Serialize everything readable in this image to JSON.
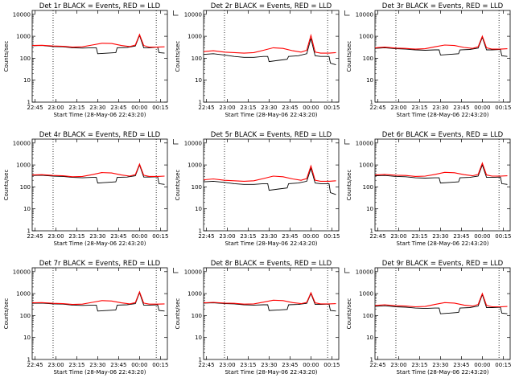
{
  "chart_data": [
    {
      "type": "line",
      "title": "Det 1r BLACK = Events, RED = LLD",
      "xlabel": "Start Time (28-May-06 22:43:20)",
      "ylabel": "Counts/sec",
      "yscale": "log",
      "ylim": [
        1,
        15000
      ],
      "x_ticks": [
        "22:45",
        "23:00",
        "23:15",
        "23:30",
        "23:45",
        "00:00",
        "00:15"
      ],
      "y_ticks": [
        "1",
        "10",
        "100",
        "1000",
        "10000"
      ],
      "series": [
        {
          "color": "#000000",
          "x": [
            "22:43",
            "22:50",
            "22:58",
            "23:05",
            "23:12",
            "23:19",
            "23:26",
            "23:29",
            "23:30",
            "23:37",
            "23:43",
            "23:44",
            "23:51",
            "23:57",
            "00:00",
            "00:03",
            "00:07",
            "00:13",
            "00:14",
            "00:18"
          ],
          "values": [
            370,
            380,
            340,
            330,
            300,
            290,
            300,
            300,
            160,
            170,
            180,
            300,
            310,
            360,
            1100,
            300,
            300,
            320,
            180,
            170
          ]
        },
        {
          "color": "#ff0000",
          "x": [
            "22:43",
            "22:50",
            "22:58",
            "23:05",
            "23:12",
            "23:19",
            "23:26",
            "23:33",
            "23:40",
            "23:47",
            "23:53",
            "23:57",
            "24:00",
            "00:03",
            "00:07",
            "00:13",
            "00:18"
          ],
          "values": [
            380,
            390,
            360,
            350,
            320,
            330,
            400,
            480,
            470,
            380,
            340,
            400,
            1200,
            380,
            320,
            320,
            330
          ]
        }
      ]
    },
    {
      "type": "line",
      "title": "Det 2r BLACK = Events, RED = LLD",
      "xlabel": "Start Time (28-May-06 22:43:20)",
      "ylabel": "Counts/sec",
      "yscale": "log",
      "ylim": [
        1,
        15000
      ],
      "x_ticks": [
        "22:45",
        "23:00",
        "23:15",
        "23:30",
        "23:45",
        "00:00",
        "00:15"
      ],
      "y_ticks": [
        "1",
        "10",
        "100",
        "1000",
        "10000"
      ],
      "series": [
        {
          "color": "#000000",
          "x": [
            "22:43",
            "22:50",
            "22:58",
            "23:05",
            "23:12",
            "23:19",
            "23:26",
            "23:29",
            "23:30",
            "23:37",
            "23:43",
            "23:44",
            "23:51",
            "23:57",
            "00:00",
            "00:03",
            "00:07",
            "00:13",
            "00:14",
            "00:18"
          ],
          "values": [
            150,
            160,
            140,
            120,
            110,
            110,
            120,
            120,
            70,
            80,
            90,
            120,
            130,
            160,
            800,
            130,
            120,
            120,
            60,
            50
          ]
        },
        {
          "color": "#ff0000",
          "x": [
            "22:43",
            "22:50",
            "22:58",
            "23:05",
            "23:12",
            "23:19",
            "23:26",
            "23:33",
            "23:40",
            "23:47",
            "23:53",
            "23:57",
            "24:00",
            "00:03",
            "00:07",
            "00:13",
            "00:18"
          ],
          "values": [
            200,
            220,
            190,
            180,
            170,
            180,
            230,
            300,
            280,
            220,
            190,
            230,
            1100,
            190,
            170,
            170,
            180
          ]
        }
      ]
    },
    {
      "type": "line",
      "title": "Det 3r BLACK = Events, RED = LLD",
      "xlabel": "Start Time (28-May-06 22:43:20)",
      "ylabel": "Counts/sec",
      "yscale": "log",
      "ylim": [
        1,
        15000
      ],
      "x_ticks": [
        "22:45",
        "23:00",
        "23:15",
        "23:30",
        "23:45",
        "00:00",
        "00:15"
      ],
      "y_ticks": [
        "1",
        "10",
        "100",
        "1000",
        "10000"
      ],
      "series": [
        {
          "color": "#000000",
          "x": [
            "22:43",
            "22:50",
            "22:58",
            "23:05",
            "23:12",
            "23:19",
            "23:26",
            "23:29",
            "23:30",
            "23:37",
            "23:43",
            "23:44",
            "23:51",
            "23:57",
            "00:00",
            "00:03",
            "00:07",
            "00:13",
            "00:14",
            "00:18"
          ],
          "values": [
            280,
            300,
            270,
            260,
            240,
            230,
            240,
            240,
            140,
            150,
            160,
            240,
            250,
            290,
            900,
            240,
            240,
            250,
            130,
            120
          ]
        },
        {
          "color": "#ff0000",
          "x": [
            "22:43",
            "22:50",
            "22:58",
            "23:05",
            "23:12",
            "23:19",
            "23:26",
            "23:33",
            "23:40",
            "23:47",
            "23:53",
            "23:57",
            "24:00",
            "00:03",
            "00:07",
            "00:13",
            "00:18"
          ],
          "values": [
            300,
            320,
            290,
            280,
            260,
            270,
            330,
            400,
            380,
            310,
            280,
            330,
            1000,
            300,
            260,
            260,
            270
          ]
        }
      ]
    },
    {
      "type": "line",
      "title": "Det 4r BLACK = Events, RED = LLD",
      "xlabel": "Start Time (28-May-06 22:43:20)",
      "ylabel": "Counts/sec",
      "yscale": "log",
      "ylim": [
        1,
        15000
      ],
      "x_ticks": [
        "22:45",
        "23:00",
        "23:15",
        "23:30",
        "23:45",
        "00:00",
        "00:15"
      ],
      "y_ticks": [
        "1",
        "10",
        "100",
        "1000",
        "10000"
      ],
      "series": [
        {
          "color": "#000000",
          "x": [
            "22:43",
            "22:50",
            "22:58",
            "23:05",
            "23:12",
            "23:19",
            "23:26",
            "23:29",
            "23:30",
            "23:37",
            "23:43",
            "23:44",
            "23:51",
            "23:57",
            "00:00",
            "00:03",
            "00:07",
            "00:13",
            "00:14",
            "00:18"
          ],
          "values": [
            330,
            340,
            310,
            300,
            270,
            260,
            270,
            270,
            150,
            160,
            170,
            270,
            280,
            320,
            1000,
            280,
            280,
            290,
            140,
            130
          ]
        },
        {
          "color": "#ff0000",
          "x": [
            "22:43",
            "22:50",
            "22:58",
            "23:05",
            "23:12",
            "23:19",
            "23:26",
            "23:33",
            "23:40",
            "23:47",
            "23:53",
            "23:57",
            "24:00",
            "00:03",
            "00:07",
            "00:13",
            "00:18"
          ],
          "values": [
            350,
            360,
            330,
            320,
            290,
            300,
            360,
            450,
            430,
            350,
            310,
            360,
            1100,
            340,
            300,
            300,
            310
          ]
        }
      ]
    },
    {
      "type": "line",
      "title": "Det 5r BLACK = Events, RED = LLD",
      "xlabel": "Start Time (28-May-06 22:43:20)",
      "ylabel": "Counts/sec",
      "yscale": "log",
      "ylim": [
        1,
        15000
      ],
      "x_ticks": [
        "22:45",
        "23:00",
        "23:15",
        "23:30",
        "23:45",
        "00:00",
        "00:15"
      ],
      "y_ticks": [
        "1",
        "10",
        "100",
        "1000",
        "10000"
      ],
      "series": [
        {
          "color": "#000000",
          "x": [
            "22:43",
            "22:50",
            "22:58",
            "23:05",
            "23:12",
            "23:19",
            "23:26",
            "23:29",
            "23:30",
            "23:37",
            "23:43",
            "23:44",
            "23:51",
            "23:57",
            "00:00",
            "00:03",
            "00:07",
            "00:13",
            "00:14",
            "00:18"
          ],
          "values": [
            170,
            180,
            160,
            140,
            130,
            130,
            140,
            140,
            70,
            80,
            90,
            140,
            150,
            180,
            700,
            150,
            140,
            140,
            55,
            45
          ]
        },
        {
          "color": "#ff0000",
          "x": [
            "22:43",
            "22:50",
            "22:58",
            "23:05",
            "23:12",
            "23:19",
            "23:26",
            "23:33",
            "23:40",
            "23:47",
            "23:53",
            "23:57",
            "24:00",
            "00:03",
            "00:07",
            "00:13",
            "00:18"
          ],
          "values": [
            210,
            230,
            200,
            190,
            180,
            190,
            240,
            310,
            290,
            230,
            200,
            240,
            900,
            200,
            180,
            180,
            190
          ]
        }
      ]
    },
    {
      "type": "line",
      "title": "Det 6r BLACK = Events, RED = LLD",
      "xlabel": "Start Time (28-May-06 22:43:20)",
      "ylabel": "Counts/sec",
      "yscale": "log",
      "ylim": [
        1,
        15000
      ],
      "x_ticks": [
        "22:45",
        "23:00",
        "23:15",
        "23:30",
        "23:45",
        "00:00",
        "00:15"
      ],
      "y_ticks": [
        "1",
        "10",
        "100",
        "1000",
        "10000"
      ],
      "series": [
        {
          "color": "#000000",
          "x": [
            "22:43",
            "22:50",
            "22:58",
            "23:05",
            "23:12",
            "23:19",
            "23:26",
            "23:29",
            "23:30",
            "23:37",
            "23:43",
            "23:44",
            "23:51",
            "23:57",
            "00:00",
            "00:03",
            "00:07",
            "00:13",
            "00:14",
            "00:18"
          ],
          "values": [
            320,
            330,
            300,
            290,
            260,
            250,
            260,
            260,
            150,
            160,
            170,
            260,
            270,
            310,
            1000,
            270,
            270,
            280,
            140,
            130
          ]
        },
        {
          "color": "#ff0000",
          "x": [
            "22:43",
            "22:50",
            "22:58",
            "23:05",
            "23:12",
            "23:19",
            "23:26",
            "23:33",
            "23:40",
            "23:47",
            "23:53",
            "23:57",
            "24:00",
            "00:03",
            "00:07",
            "00:13",
            "00:18"
          ],
          "values": [
            350,
            370,
            340,
            330,
            300,
            310,
            370,
            460,
            440,
            360,
            320,
            370,
            1200,
            350,
            310,
            310,
            320
          ]
        }
      ]
    },
    {
      "type": "line",
      "title": "Det 7r BLACK = Events, RED = LLD",
      "xlabel": "Start Time (28-May-06 22:43:20)",
      "ylabel": "Counts/sec",
      "yscale": "log",
      "ylim": [
        1,
        15000
      ],
      "x_ticks": [
        "22:45",
        "23:00",
        "23:15",
        "23:30",
        "23:45",
        "00:00",
        "00:15"
      ],
      "y_ticks": [
        "1",
        "10",
        "100",
        "1000",
        "10000"
      ],
      "series": [
        {
          "color": "#000000",
          "x": [
            "22:43",
            "22:50",
            "22:58",
            "23:05",
            "23:12",
            "23:19",
            "23:26",
            "23:29",
            "23:30",
            "23:37",
            "23:43",
            "23:44",
            "23:51",
            "23:57",
            "00:00",
            "00:03",
            "00:07",
            "00:13",
            "00:14",
            "00:18"
          ],
          "values": [
            360,
            370,
            340,
            330,
            300,
            290,
            300,
            300,
            160,
            170,
            180,
            300,
            310,
            350,
            1100,
            300,
            300,
            310,
            170,
            160
          ]
        },
        {
          "color": "#ff0000",
          "x": [
            "22:43",
            "22:50",
            "22:58",
            "23:05",
            "23:12",
            "23:19",
            "23:26",
            "23:33",
            "23:40",
            "23:47",
            "23:53",
            "23:57",
            "24:00",
            "00:03",
            "00:07",
            "00:13",
            "00:18"
          ],
          "values": [
            380,
            390,
            360,
            350,
            320,
            330,
            400,
            480,
            460,
            380,
            340,
            390,
            1200,
            370,
            330,
            330,
            340
          ]
        }
      ]
    },
    {
      "type": "line",
      "title": "Det 8r BLACK = Events, RED = LLD",
      "xlabel": "Start Time (28-May-06 22:43:20)",
      "ylabel": "Counts/sec",
      "yscale": "log",
      "ylim": [
        1,
        15000
      ],
      "x_ticks": [
        "22:45",
        "23:00",
        "23:15",
        "23:30",
        "23:45",
        "00:00",
        "00:15"
      ],
      "y_ticks": [
        "1",
        "10",
        "100",
        "1000",
        "10000"
      ],
      "series": [
        {
          "color": "#000000",
          "x": [
            "22:43",
            "22:50",
            "22:58",
            "23:05",
            "23:12",
            "23:19",
            "23:26",
            "23:29",
            "23:30",
            "23:37",
            "23:43",
            "23:44",
            "23:51",
            "23:57",
            "00:00",
            "00:03",
            "00:07",
            "00:13",
            "00:14",
            "00:18"
          ],
          "values": [
            370,
            380,
            350,
            340,
            310,
            300,
            310,
            310,
            170,
            180,
            190,
            310,
            320,
            360,
            1000,
            320,
            320,
            330,
            170,
            160
          ]
        },
        {
          "color": "#ff0000",
          "x": [
            "22:43",
            "22:50",
            "22:58",
            "23:05",
            "23:12",
            "23:19",
            "23:26",
            "23:33",
            "23:40",
            "23:47",
            "23:53",
            "23:57",
            "24:00",
            "00:03",
            "00:07",
            "00:13",
            "00:18"
          ],
          "values": [
            380,
            400,
            370,
            360,
            330,
            340,
            410,
            500,
            480,
            390,
            350,
            400,
            1100,
            380,
            340,
            340,
            350
          ]
        }
      ]
    },
    {
      "type": "line",
      "title": "Det 9r BLACK = Events, RED = LLD",
      "xlabel": "Start Time (28-May-06 22:43:20)",
      "ylabel": "Counts/sec",
      "yscale": "log",
      "ylim": [
        1,
        15000
      ],
      "x_ticks": [
        "22:45",
        "23:00",
        "23:15",
        "23:30",
        "23:45",
        "00:00",
        "00:15"
      ],
      "y_ticks": [
        "1",
        "10",
        "100",
        "1000",
        "10000"
      ],
      "series": [
        {
          "color": "#000000",
          "x": [
            "22:43",
            "22:50",
            "22:58",
            "23:05",
            "23:12",
            "23:19",
            "23:26",
            "23:29",
            "23:30",
            "23:37",
            "23:43",
            "23:44",
            "23:51",
            "23:57",
            "00:00",
            "00:03",
            "00:07",
            "00:13",
            "00:14",
            "00:18"
          ],
          "values": [
            260,
            280,
            250,
            240,
            220,
            210,
            220,
            220,
            120,
            130,
            140,
            220,
            230,
            270,
            900,
            230,
            230,
            240,
            130,
            120
          ]
        },
        {
          "color": "#ff0000",
          "x": [
            "22:43",
            "22:50",
            "22:58",
            "23:05",
            "23:12",
            "23:19",
            "23:26",
            "23:33",
            "23:40",
            "23:47",
            "23:53",
            "23:57",
            "24:00",
            "00:03",
            "00:07",
            "00:13",
            "00:18"
          ],
          "values": [
            290,
            310,
            280,
            270,
            250,
            260,
            320,
            390,
            370,
            300,
            270,
            320,
            1000,
            290,
            250,
            250,
            260
          ]
        }
      ]
    }
  ]
}
